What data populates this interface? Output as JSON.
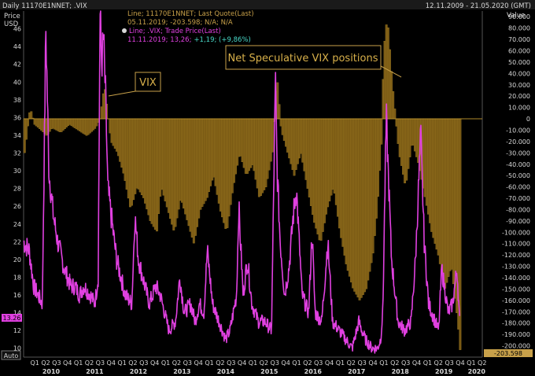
{
  "header": {
    "left_title": "Daily 11170E1NNET; .VIX",
    "date_range": "12.11.2009 - 21.05.2020 (GMT)"
  },
  "axes": {
    "left_unit_line1": "Price",
    "left_unit_line2": "USD",
    "right_unit": "Value",
    "auto_label": "Auto"
  },
  "legend": {
    "line1_name": "Line; 11170E1NNET; Last Quote(Last)",
    "line1_value": "05.11.2019; -203.598; N/A; N/A",
    "line2_name": "Line; .VIX; Trade Price(Last)",
    "line2_date_value": "11.11.2019; 13,26;",
    "line2_change": "+1,19; (+9,86%)"
  },
  "annotations": {
    "vix": "VIX",
    "positions": "Net Speculative VIX positions"
  },
  "last_values": {
    "vix_tag": "13.26",
    "positions_tag": "-203.598"
  },
  "colors": {
    "background": "#000000",
    "vix": "#e040e0",
    "positions_fill": "#7a5a14",
    "positions_outline": "#b08a2a",
    "annotation_border": "#c8a14a",
    "annotation_text": "#d8b04a"
  },
  "chart_data": {
    "type": "line",
    "left_axis": {
      "min": 9,
      "max": 48,
      "ticks": [
        10,
        12,
        14,
        16,
        18,
        20,
        22,
        24,
        26,
        28,
        30,
        32,
        34,
        36,
        38,
        40,
        42,
        44,
        46
      ]
    },
    "right_axis": {
      "min": -210000,
      "max": 95000,
      "ticks": [
        "90.000",
        "80.000",
        "70.000",
        "60.000",
        "50.000",
        "40.000",
        "30.000",
        "20.000",
        "10.000",
        "0",
        "-10.000",
        "-20.000",
        "-30.000",
        "-40.000",
        "-50.000",
        "-60.000",
        "-70.000",
        "-80.000",
        "-90.000",
        "-100.000",
        "-110.000",
        "-120.000",
        "-130.000",
        "-140.000",
        "-150.000",
        "-160.000",
        "-170.000",
        "-180.000",
        "-190.000",
        "-200.000"
      ]
    },
    "x_axis": {
      "quarters": [
        "Q1",
        "Q2",
        "Q3",
        "Q4",
        "Q1",
        "Q2",
        "Q3",
        "Q4",
        "Q1",
        "Q2",
        "Q3",
        "Q4",
        "Q1",
        "Q2",
        "Q3",
        "Q4",
        "Q1",
        "Q2",
        "Q3",
        "Q4",
        "Q1",
        "Q2",
        "Q3",
        "Q4",
        "Q1",
        "Q2",
        "Q3",
        "Q4",
        "Q1",
        "Q2",
        "Q3",
        "Q4",
        "Q1",
        "Q2",
        "Q3",
        "Q4",
        "Q1",
        "Q2",
        "Q3",
        "Q4",
        "Q1",
        "Q2"
      ],
      "years": [
        "2010",
        "2011",
        "2012",
        "2013",
        "2014",
        "2015",
        "2016",
        "2017",
        "2018",
        "2019",
        "2020"
      ]
    },
    "series": [
      {
        "name": "Line; .VIX; Trade Price(Last)",
        "axis": "left",
        "x": [
          2009.87,
          2010.0,
          2010.1,
          2010.2,
          2010.3,
          2010.33,
          2010.38,
          2010.45,
          2010.55,
          2010.65,
          2010.8,
          2010.95,
          2011.05,
          2011.15,
          2011.25,
          2011.4,
          2011.5,
          2011.58,
          2011.62,
          2011.66,
          2011.7,
          2011.75,
          2011.8,
          2011.9,
          2012.0,
          2012.1,
          2012.2,
          2012.35,
          2012.42,
          2012.5,
          2012.6,
          2012.75,
          2012.9,
          2013.0,
          2013.1,
          2013.2,
          2013.35,
          2013.45,
          2013.55,
          2013.7,
          2013.8,
          2013.9,
          2014.0,
          2014.08,
          2014.2,
          2014.35,
          2014.5,
          2014.6,
          2014.75,
          2014.8,
          2014.9,
          2015.0,
          2015.1,
          2015.25,
          2015.4,
          2015.55,
          2015.64,
          2015.68,
          2015.75,
          2015.85,
          2015.95,
          2016.05,
          2016.12,
          2016.25,
          2016.4,
          2016.48,
          2016.55,
          2016.7,
          2016.84,
          2016.95,
          2017.1,
          2017.25,
          2017.4,
          2017.55,
          2017.62,
          2017.7,
          2017.85,
          2017.98,
          2018.05,
          2018.1,
          2018.18,
          2018.3,
          2018.45,
          2018.6,
          2018.75,
          2018.85,
          2018.97,
          2019.05,
          2019.15,
          2019.3,
          2019.38,
          2019.45,
          2019.6,
          2019.7,
          2019.8,
          2019.86
        ],
        "values": [
          22,
          21,
          17,
          16,
          15,
          27,
          46,
          30,
          25,
          22,
          19,
          17,
          17,
          16,
          17,
          16,
          15,
          18,
          48,
          42,
          45,
          38,
          28,
          24,
          20,
          18,
          16,
          15,
          25,
          20,
          18,
          15,
          17,
          16,
          14,
          12,
          13,
          18,
          14,
          15,
          13,
          15,
          14,
          21,
          15,
          13,
          11,
          12,
          16,
          26,
          16,
          20,
          15,
          13,
          13,
          12,
          40,
          30,
          22,
          16,
          19,
          25,
          28,
          16,
          14,
          23,
          14,
          13,
          22,
          13,
          12,
          11,
          10,
          13,
          12,
          11,
          10,
          10,
          11,
          14,
          36,
          20,
          13,
          12,
          13,
          20,
          34,
          22,
          15,
          13,
          12,
          19,
          14,
          15,
          19,
          13
        ]
      },
      {
        "name": "Line; 11170E1NNET; Last Quote(Last)",
        "axis": "right",
        "x": [
          2009.87,
          2010.0,
          2010.1,
          2010.25,
          2010.38,
          2010.5,
          2010.7,
          2010.9,
          2011.1,
          2011.3,
          2011.5,
          2011.6,
          2011.7,
          2011.85,
          2012.0,
          2012.15,
          2012.3,
          2012.45,
          2012.6,
          2012.75,
          2012.9,
          2013.0,
          2013.15,
          2013.3,
          2013.45,
          2013.6,
          2013.75,
          2013.9,
          2014.05,
          2014.2,
          2014.35,
          2014.5,
          2014.65,
          2014.8,
          2014.95,
          2015.1,
          2015.25,
          2015.4,
          2015.55,
          2015.65,
          2015.75,
          2015.9,
          2016.05,
          2016.2,
          2016.35,
          2016.5,
          2016.65,
          2016.8,
          2016.95,
          2017.1,
          2017.25,
          2017.4,
          2017.55,
          2017.7,
          2017.85,
          2017.95,
          2018.05,
          2018.1,
          2018.18,
          2018.3,
          2018.45,
          2018.6,
          2018.75,
          2018.9,
          2019.05,
          2019.2,
          2019.35,
          2019.5,
          2019.65,
          2019.8,
          2019.85
        ],
        "values": [
          -30000,
          10000,
          -5000,
          -10000,
          -15000,
          -8000,
          -12000,
          -5000,
          -10000,
          -15000,
          -8000,
          0,
          30000,
          -20000,
          -30000,
          -50000,
          -80000,
          -60000,
          -70000,
          -90000,
          -100000,
          -60000,
          -80000,
          -100000,
          -70000,
          -90000,
          -110000,
          -80000,
          -70000,
          -50000,
          -80000,
          -100000,
          -60000,
          -30000,
          -50000,
          -40000,
          -70000,
          -60000,
          -30000,
          40000,
          -10000,
          -30000,
          -50000,
          -30000,
          -60000,
          -90000,
          -110000,
          -80000,
          -60000,
          -100000,
          -130000,
          -150000,
          -160000,
          -150000,
          -120000,
          -80000,
          -20000,
          60000,
          90000,
          30000,
          -30000,
          -60000,
          -20000,
          -40000,
          -70000,
          -100000,
          -120000,
          -150000,
          -130000,
          -180000,
          -203598
        ]
      }
    ]
  }
}
